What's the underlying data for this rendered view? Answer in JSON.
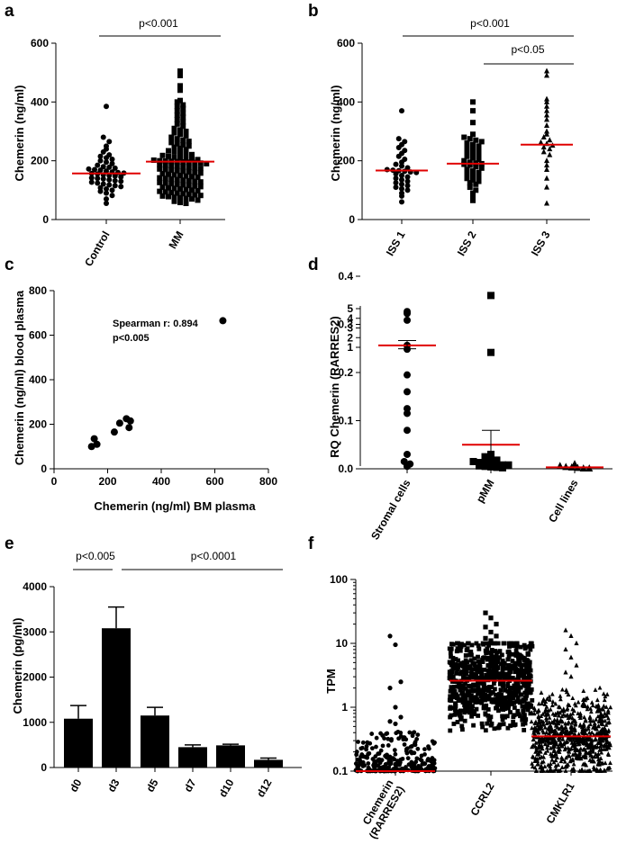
{
  "figure": {
    "panel_letters": [
      "a",
      "b",
      "c",
      "d",
      "e",
      "f"
    ]
  },
  "chart_data": [
    {
      "id": "a",
      "type": "scatter",
      "ylabel": "Chemerin (ng/ml)",
      "categories": [
        "Control",
        "MM"
      ],
      "ylim": [
        0,
        600
      ],
      "yticks": [
        0,
        200,
        400,
        600
      ],
      "marker": [
        "circle",
        "square"
      ],
      "medians": [
        157,
        197
      ],
      "significance": [
        {
          "label": "p<0.001",
          "from": 0,
          "to": 1
        }
      ],
      "groups": [
        {
          "name": "Control",
          "n": 50,
          "min": 55,
          "max": 385,
          "median": 157,
          "values": [
            385,
            280,
            265,
            250,
            240,
            230,
            220,
            215,
            210,
            205,
            200,
            195,
            190,
            185,
            180,
            178,
            175,
            172,
            170,
            168,
            165,
            162,
            160,
            158,
            157,
            155,
            152,
            150,
            148,
            145,
            142,
            140,
            138,
            135,
            132,
            130,
            127,
            124,
            121,
            118,
            115,
            112,
            108,
            104,
            100,
            96,
            90,
            82,
            70,
            55
          ]
        },
        {
          "name": "MM",
          "n": 120,
          "min": 55,
          "max": 505,
          "median": 197,
          "values": [
            505,
            490,
            455,
            440,
            405,
            400,
            390,
            385,
            378,
            370,
            362,
            355,
            348,
            340,
            332,
            325,
            318,
            310,
            305,
            300,
            295,
            290,
            285,
            280,
            275,
            270,
            266,
            262,
            258,
            254,
            250,
            246,
            242,
            238,
            234,
            230,
            227,
            224,
            221,
            218,
            215,
            212,
            210,
            208,
            206,
            204,
            202,
            200,
            199,
            198,
            197,
            196,
            195,
            194,
            192,
            190,
            188,
            186,
            184,
            182,
            180,
            178,
            176,
            174,
            172,
            170,
            168,
            166,
            164,
            162,
            160,
            158,
            156,
            154,
            152,
            150,
            148,
            146,
            144,
            142,
            140,
            138,
            136,
            134,
            132,
            130,
            128,
            126,
            124,
            122,
            120,
            118,
            116,
            114,
            112,
            110,
            108,
            106,
            104,
            102,
            100,
            98,
            96,
            94,
            92,
            90,
            88,
            86,
            84,
            82,
            80,
            78,
            76,
            74,
            72,
            70,
            66,
            62,
            58,
            55
          ]
        }
      ]
    },
    {
      "id": "b",
      "type": "scatter",
      "ylabel": "Chemerin (ng/ml)",
      "categories": [
        "ISS 1",
        "ISS 2",
        "ISS 3"
      ],
      "ylim": [
        0,
        600
      ],
      "yticks": [
        0,
        200,
        400,
        600
      ],
      "marker": [
        "circle",
        "square",
        "triangle"
      ],
      "medians": [
        167,
        190,
        255
      ],
      "significance": [
        {
          "label": "p<0.001",
          "from": 0,
          "to": 2
        },
        {
          "label": "p<0.05",
          "from": 1,
          "to": 2
        }
      ],
      "groups": [
        {
          "name": "ISS 1",
          "n": 34,
          "min": 60,
          "max": 370,
          "median": 167,
          "values": [
            370,
            275,
            265,
            255,
            245,
            235,
            225,
            215,
            205,
            195,
            188,
            182,
            176,
            170,
            168,
            166,
            164,
            162,
            160,
            155,
            150,
            145,
            140,
            135,
            130,
            125,
            120,
            115,
            110,
            105,
            100,
            90,
            80,
            60
          ]
        },
        {
          "name": "ISS 2",
          "n": 44,
          "min": 65,
          "max": 400,
          "median": 190,
          "values": [
            400,
            370,
            330,
            290,
            280,
            275,
            270,
            265,
            260,
            255,
            250,
            245,
            240,
            235,
            230,
            225,
            220,
            215,
            210,
            205,
            200,
            195,
            192,
            190,
            188,
            185,
            180,
            175,
            170,
            165,
            160,
            155,
            150,
            145,
            140,
            135,
            130,
            125,
            120,
            110,
            100,
            90,
            80,
            65
          ]
        },
        {
          "name": "ISS 3",
          "n": 26,
          "min": 55,
          "max": 505,
          "median": 255,
          "values": [
            505,
            490,
            410,
            400,
            385,
            370,
            355,
            340,
            320,
            300,
            290,
            280,
            270,
            262,
            258,
            252,
            246,
            240,
            230,
            220,
            200,
            185,
            170,
            140,
            110,
            55
          ]
        }
      ]
    },
    {
      "id": "c",
      "type": "scatter",
      "xlabel": "Chemerin (ng/ml) BM plasma",
      "ylabel": "Chemerin (ng/ml) blood plasma",
      "xlim": [
        0,
        800
      ],
      "ylim": [
        0,
        800
      ],
      "xticks": [
        0,
        200,
        400,
        600,
        800
      ],
      "yticks": [
        0,
        200,
        400,
        600,
        800
      ],
      "annotation": [
        "Spearman r: 0.894",
        "p<0.005"
      ],
      "points": [
        [
          140,
          100
        ],
        [
          150,
          135
        ],
        [
          160,
          110
        ],
        [
          225,
          165
        ],
        [
          245,
          205
        ],
        [
          270,
          225
        ],
        [
          280,
          185
        ],
        [
          285,
          215
        ],
        [
          630,
          665
        ]
      ]
    },
    {
      "id": "d",
      "type": "scatter",
      "ylabel": "RQ Chemerin (RARRES2)",
      "categories": [
        "Stromal cells",
        "pMM",
        "Cell lines"
      ],
      "marker": [
        "circle",
        "square",
        "triangle"
      ],
      "yaxis_segments": {
        "lower": {
          "range": [
            0,
            0.4
          ],
          "ticks": [
            "0.0",
            "0.1",
            "0.2",
            "0.3",
            "0.4"
          ]
        },
        "upper": {
          "range": [
            1,
            5
          ],
          "ticks": [
            "1",
            "2",
            "3",
            "4",
            "5"
          ]
        }
      },
      "means": [
        1.2,
        0.05,
        0.003
      ],
      "error_bars": [
        [
          0.85,
          1.7
        ],
        [
          0.02,
          0.08
        ],
        null
      ],
      "groups": [
        {
          "name": "Stromal cells",
          "values": [
            4.7,
            4.5,
            3.8,
            1.2,
            0.8,
            0.195,
            0.16,
            0.125,
            0.115,
            0.08,
            0.03,
            0.015,
            0.01,
            0.005
          ]
        },
        {
          "name": "pMM",
          "values": [
            0.47,
            0.36,
            0.03,
            0.025,
            0.02,
            0.018,
            0.015,
            0.013,
            0.012,
            0.01,
            0.01,
            0.008,
            0.008,
            0.006,
            0.005,
            0.004,
            0.003,
            0.002
          ]
        },
        {
          "name": "Cell lines",
          "values": [
            0.01,
            0.006,
            0.004,
            0.003,
            0.002,
            0.001,
            0.001
          ]
        }
      ]
    },
    {
      "id": "e",
      "type": "bar",
      "ylabel": "Chemerin (pg/ml)",
      "categories": [
        "d0",
        "d3",
        "d5",
        "d7",
        "d10",
        "d12"
      ],
      "values": [
        1080,
        3080,
        1150,
        450,
        490,
        170
      ],
      "errors": [
        290,
        470,
        180,
        50,
        25,
        40
      ],
      "ylim": [
        0,
        4000
      ],
      "yticks": [
        0,
        1000,
        2000,
        3000,
        4000
      ],
      "significance": [
        {
          "label": "p<0.005",
          "from": 0,
          "to": 1
        },
        {
          "label": "p<0.0001",
          "from": 1,
          "to": 5
        }
      ]
    },
    {
      "id": "f",
      "type": "scatter",
      "ylabel": "TPM",
      "categories": [
        "Chemerin\n(RARRES2)",
        "CCRL2",
        "CMKLR1"
      ],
      "category_labels": [
        [
          "Chemerin",
          "(RARRES2)"
        ],
        [
          "CCRL2"
        ],
        [
          "CMKLR1"
        ]
      ],
      "marker": [
        "circle",
        "square",
        "triangle"
      ],
      "yscale": "log",
      "ylim": [
        0.1,
        100
      ],
      "yticks": [
        "0.1",
        "1",
        "10",
        "100"
      ],
      "medians": [
        0.1,
        2.6,
        0.35
      ],
      "groups": [
        {
          "name": "Chemerin (RARRES2)",
          "max": 13,
          "min": 0.1,
          "median": 0.1,
          "high_outliers": [
            13,
            9.5,
            2.5,
            2.0,
            1.0,
            0.7,
            0.6,
            0.55
          ]
        },
        {
          "name": "CCRL2",
          "max": 30,
          "min": 0.1,
          "median": 2.6,
          "high_outliers": [
            30,
            25,
            20,
            18,
            15,
            13,
            12,
            11
          ]
        },
        {
          "name": "CMKLR1",
          "max": 16,
          "min": 0.1,
          "median": 0.35,
          "high_outliers": [
            16,
            13,
            10,
            8,
            6,
            4.5,
            3.5,
            3.0
          ]
        }
      ]
    }
  ]
}
